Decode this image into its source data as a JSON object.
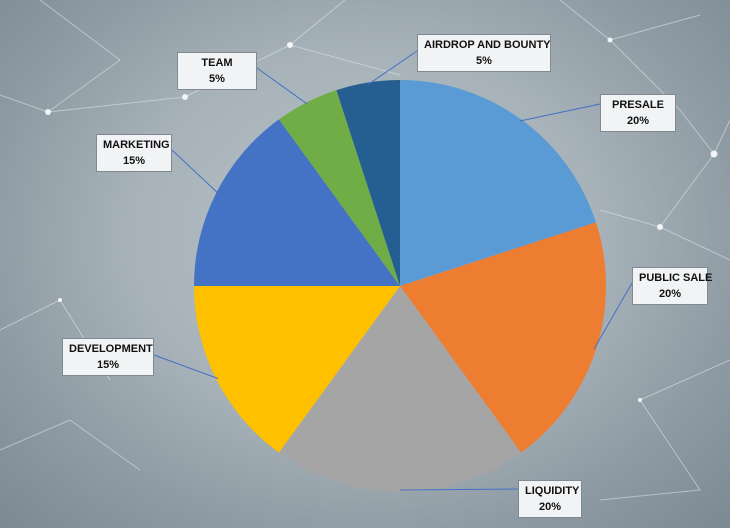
{
  "chart_data": {
    "type": "pie",
    "title": "",
    "start_angle_deg": 0,
    "direction": "clockwise",
    "slices": [
      {
        "name": "PRESALE",
        "value": 20,
        "label": "20%",
        "color": "#5b9bd5"
      },
      {
        "name": "PUBLIC SALE",
        "value": 20,
        "label": "20%",
        "color": "#ed7d31"
      },
      {
        "name": "LIQUIDITY",
        "value": 20,
        "label": "20%",
        "color": "#a5a5a5"
      },
      {
        "name": "DEVELOPMENT",
        "value": 15,
        "label": "15%",
        "color": "#ffc000"
      },
      {
        "name": "MARKETING",
        "value": 15,
        "label": "15%",
        "color": "#4472c4"
      },
      {
        "name": "TEAM",
        "value": 5,
        "label": "5%",
        "color": "#70ad47"
      },
      {
        "name": "AIRDROP AND BOUNTY",
        "value": 5,
        "label": "5%",
        "color": "#255e91"
      }
    ],
    "legend": "none",
    "data_labels": "callouts"
  }
}
